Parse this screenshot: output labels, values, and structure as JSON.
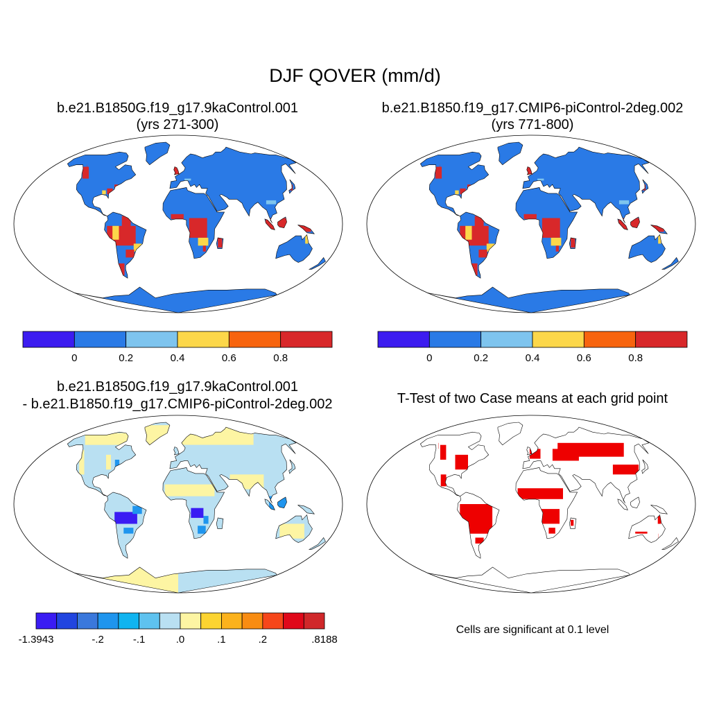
{
  "figure": {
    "title": "DJF QOVER (mm/d)",
    "note": "Cells are significant at 0.1 level"
  },
  "panels": [
    {
      "id": "case1",
      "title_line1": "b.e21.B1850G.f19_g17.9kaControl.001",
      "title_line2": "(yrs 271-300)"
    },
    {
      "id": "case2",
      "title_line1": "b.e21.B1850.f19_g17.CMIP6-piControl-2deg.002",
      "title_line2": "(yrs 771-800)"
    },
    {
      "id": "diff",
      "title_line1": "b.e21.B1850G.f19_g17.9kaControl.001",
      "title_line2": "- b.e21.B1850.f19_g17.CMIP6-piControl-2deg.002"
    },
    {
      "id": "ttest",
      "title_line1": "T-Test of two Case means at each grid point"
    }
  ],
  "colorbars": {
    "case": {
      "colors": [
        "#3c1cf0",
        "#2a7ae6",
        "#7ec4ee",
        "#fcd74a",
        "#f7640e",
        "#d8282a"
      ],
      "labels": [
        "0",
        "0.2",
        "0.4",
        "0.6",
        "0.8"
      ]
    },
    "diff": {
      "colors": [
        "#3a1cf3",
        "#2145e0",
        "#3a78dc",
        "#1f95ee",
        "#10b4f0",
        "#5ec2ef",
        "#b9e0f2",
        "#fdf5a3",
        "#fcd431",
        "#fbb21c",
        "#f88c12",
        "#f6461a",
        "#e0081a",
        "#d0282a"
      ],
      "labels": [
        "-1.3943",
        "-.2",
        "-.1",
        ".0",
        ".1",
        ".2",
        ".8188"
      ]
    }
  },
  "map_colors": {
    "case_base": "#2a7ae6",
    "case_high": "#d8282a",
    "case_mid": "#fcd74a",
    "case_light": "#7ec4ee",
    "diff_land": "#b9e0f2",
    "diff_warm": "#fdf5a3",
    "diff_neg": "#3a1cf3",
    "diff_neg2": "#1f95ee",
    "sig": "#ee0000"
  }
}
